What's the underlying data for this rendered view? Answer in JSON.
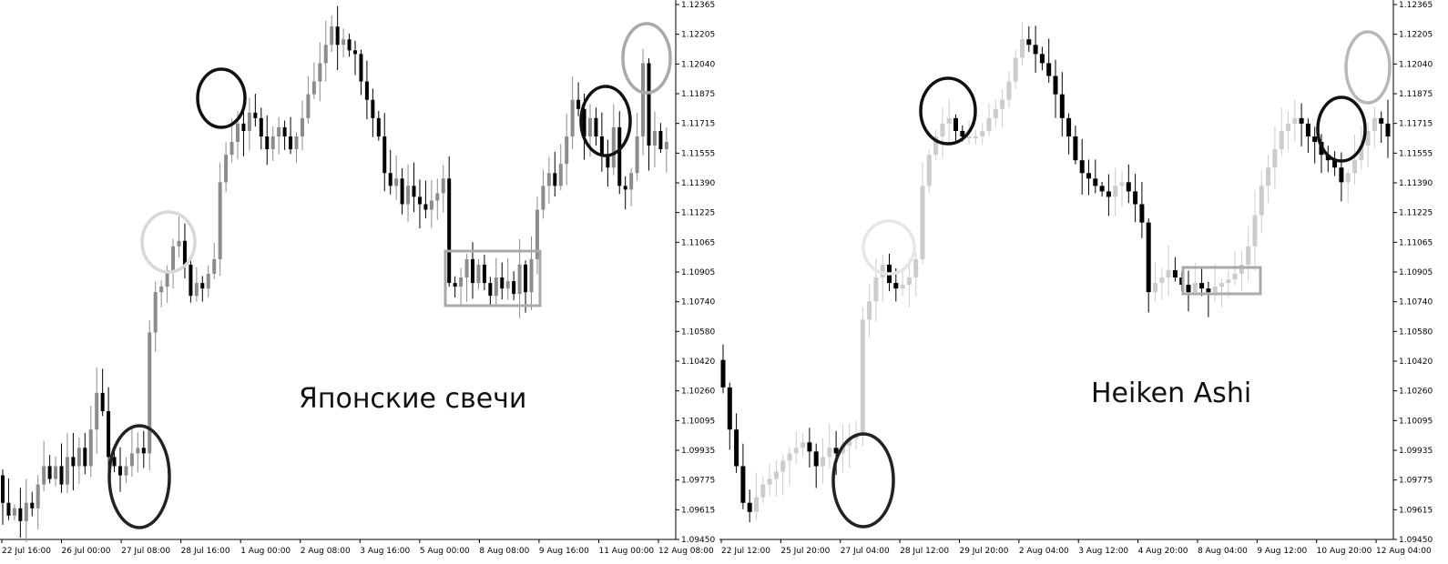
{
  "chart_data": [
    {
      "type": "candlestick",
      "title": "Японские свечи",
      "ylim": [
        1.0945,
        1.1237
      ],
      "y_ticks": [
        "1.12365",
        "1.12205",
        "1.12040",
        "1.11875",
        "1.11715",
        "1.11555",
        "1.11390",
        "1.11225",
        "1.11065",
        "1.10905",
        "1.10740",
        "1.10580",
        "1.10420",
        "1.10260",
        "1.10095",
        "1.09935",
        "1.09775",
        "1.09615",
        "1.09450"
      ],
      "x_ticks": [
        "22 Jul 16:00",
        "26 Jul 00:00",
        "27 Jul 08:00",
        "28 Jul 16:00",
        "1 Aug 00:00",
        "2 Aug 08:00",
        "3 Aug 16:00",
        "5 Aug 00:00",
        "8 Aug 08:00",
        "9 Aug 16:00",
        "11 Aug 00:00",
        "12 Aug 08:00"
      ],
      "colors": {
        "up": "#8c8c8c",
        "down": "#000000"
      },
      "closes": [
        1.0965,
        1.0958,
        1.0962,
        1.0955,
        1.0965,
        1.0962,
        1.0975,
        1.0985,
        1.0978,
        1.0985,
        1.0975,
        1.099,
        1.0985,
        1.0995,
        1.0985,
        1.1005,
        1.1025,
        1.1015,
        1.099,
        1.0985,
        1.098,
        1.0985,
        1.0992,
        1.0995,
        1.0992,
        1.1058,
        1.108,
        1.1083,
        1.1092,
        1.1105,
        1.1108,
        1.1095,
        1.1078,
        1.1085,
        1.1082,
        1.109,
        1.1098,
        1.114,
        1.1155,
        1.1162,
        1.1172,
        1.1168,
        1.1178,
        1.1175,
        1.1165,
        1.1158,
        1.1165,
        1.117,
        1.1165,
        1.1158,
        1.1165,
        1.1175,
        1.1188,
        1.1195,
        1.1205,
        1.1215,
        1.1225,
        1.1215,
        1.1218,
        1.1212,
        1.121,
        1.1195,
        1.1185,
        1.1175,
        1.1165,
        1.1145,
        1.1138,
        1.1142,
        1.1128,
        1.1138,
        1.1132,
        1.1128,
        1.1125,
        1.113,
        1.1134,
        1.1142,
        1.1085,
        1.1083,
        1.1088,
        1.1098,
        1.1085,
        1.1095,
        1.1085,
        1.1078,
        1.1088,
        1.1082,
        1.1086,
        1.1079,
        1.1095,
        1.108,
        1.1098,
        1.1125,
        1.1138,
        1.1145,
        1.1138,
        1.115,
        1.1165,
        1.1185,
        1.118,
        1.1165,
        1.1175,
        1.1165,
        1.1155,
        1.1148,
        1.117,
        1.1138,
        1.1136,
        1.1145,
        1.1165,
        1.1205,
        1.116,
        1.1168,
        1.1158,
        1.1162
      ]
    },
    {
      "type": "heikin-ashi",
      "title": "Heiken Ashi",
      "ylim": [
        1.0945,
        1.1237
      ],
      "y_ticks": [
        "1.12365",
        "1.12205",
        "1.12040",
        "1.11875",
        "1.11715",
        "1.11555",
        "1.11390",
        "1.11225",
        "1.11065",
        "1.10905",
        "1.10740",
        "1.10580",
        "1.10420",
        "1.10260",
        "1.10095",
        "1.09935",
        "1.09775",
        "1.09615",
        "1.09450"
      ],
      "x_ticks": [
        "22 Jul 12:00",
        "25 Jul 20:00",
        "27 Jul 04:00",
        "28 Jul 12:00",
        "29 Jul 20:00",
        "2 Aug 04:00",
        "3 Aug 12:00",
        "4 Aug 20:00",
        "8 Aug 04:00",
        "9 Aug 12:00",
        "10 Aug 20:00",
        "12 Aug 04:00"
      ],
      "colors": {
        "up": "#cccccc",
        "down": "#000000"
      },
      "closes": [
        1.1028,
        1.1005,
        1.0985,
        1.0965,
        1.096,
        1.0968,
        1.0975,
        1.0978,
        1.0982,
        1.0988,
        1.0992,
        1.0995,
        1.0998,
        1.0993,
        1.0985,
        1.099,
        1.0995,
        1.0992,
        1.0996,
        1.1,
        1.1002,
        1.1065,
        1.1075,
        1.1088,
        1.1095,
        1.1085,
        1.1082,
        1.1084,
        1.1088,
        1.1098,
        1.1138,
        1.1155,
        1.1165,
        1.1172,
        1.1175,
        1.1168,
        1.1165,
        1.1165,
        1.1165,
        1.1168,
        1.1175,
        1.118,
        1.1185,
        1.1195,
        1.1208,
        1.1218,
        1.1215,
        1.121,
        1.1205,
        1.1198,
        1.1188,
        1.1175,
        1.1165,
        1.1152,
        1.1145,
        1.1142,
        1.1138,
        1.1135,
        1.1132,
        1.1138,
        1.114,
        1.1135,
        1.1128,
        1.1118,
        1.108,
        1.1085,
        1.1088,
        1.1092,
        1.1088,
        1.1084,
        1.108,
        1.1085,
        1.1082,
        1.108,
        1.1083,
        1.1085,
        1.1087,
        1.109,
        1.1095,
        1.1105,
        1.1122,
        1.1138,
        1.1148,
        1.1158,
        1.1168,
        1.1172,
        1.1175,
        1.1172,
        1.1165,
        1.1162,
        1.1155,
        1.1152,
        1.1148,
        1.114,
        1.1145,
        1.1152,
        1.116,
        1.1168,
        1.1175,
        1.1172,
        1.1165
      ]
    }
  ]
}
